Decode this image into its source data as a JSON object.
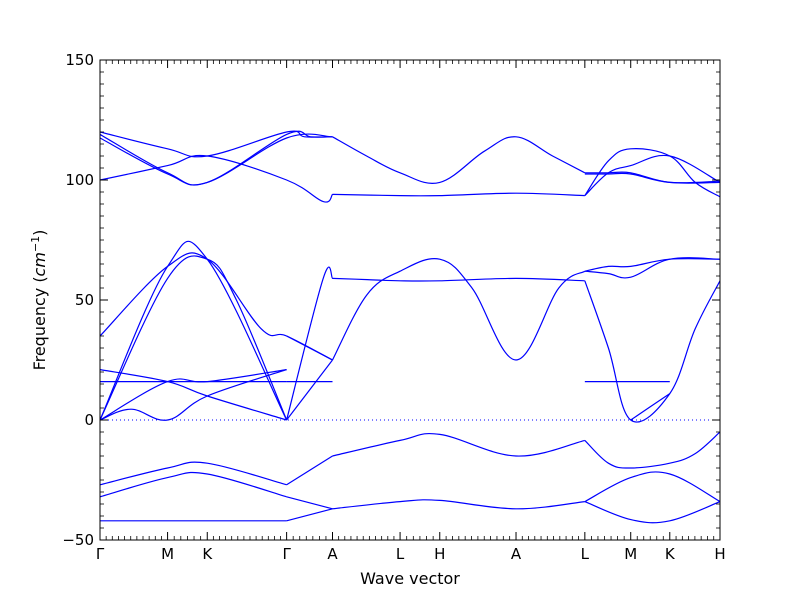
{
  "chart_data": {
    "type": "line",
    "title": "",
    "xlabel": "Wave vector",
    "ylabel_prefix": "Frequency (",
    "ylabel_unit_base": "cm",
    "ylabel_unit_exp": "−1",
    "ylabel_suffix": ")",
    "ylim": [
      -50,
      150
    ],
    "yticks": [
      -50,
      0,
      50,
      100,
      150
    ],
    "ytick_labels": [
      "−50",
      "0",
      "50",
      "100",
      "150"
    ],
    "grid": false,
    "legend": "none",
    "colors": {
      "bands": "#0000ff",
      "zero_line": "#0000ff"
    },
    "high_symmetry_points": [
      {
        "label": "Γ",
        "x": 0.0
      },
      {
        "label": "M",
        "x": 0.109
      },
      {
        "label": "K",
        "x": 0.173
      },
      {
        "label": "Γ",
        "x": 0.301
      },
      {
        "label": "A",
        "x": 0.375
      },
      {
        "label": "L",
        "x": 0.484
      },
      {
        "label": "H",
        "x": 0.548
      },
      {
        "label": "A",
        "x": 0.671
      },
      {
        "label": "L",
        "x": 0.782
      },
      {
        "label": "M",
        "x": 0.856
      },
      {
        "label": "K",
        "x": 0.919
      },
      {
        "label": "H",
        "x": 1.0
      }
    ],
    "xlim": [
      0,
      1
    ],
    "series": [
      {
        "x": [
          0,
          0.109,
          0.173,
          0.301,
          0.33,
          0.375
        ],
        "y": [
          120,
          113,
          110,
          120,
          118,
          118
        ]
      },
      {
        "x": [
          0,
          0.109,
          0.173,
          0.301,
          0.34,
          0.375
        ],
        "y": [
          119,
          103,
          99,
          119,
          118,
          118
        ]
      },
      {
        "x": [
          0,
          0.109,
          0.173,
          0.301,
          0.375
        ],
        "y": [
          117.5,
          102.5,
          99,
          117.5,
          118
        ]
      },
      {
        "x": [
          0,
          0.109,
          0.173,
          0.301,
          0.36,
          0.375
        ],
        "y": [
          100,
          106,
          110,
          100,
          91,
          94
        ]
      },
      {
        "x": [
          0.375,
          0.43,
          0.484,
          0.548,
          0.62,
          0.671,
          0.73,
          0.782
        ],
        "y": [
          118,
          110,
          103,
          99,
          112,
          118,
          110,
          103
        ]
      },
      {
        "x": [
          0.375,
          0.484,
          0.548,
          0.671,
          0.782
        ],
        "y": [
          94,
          93.5,
          93.5,
          94.5,
          93.5
        ]
      },
      {
        "x": [
          0.782,
          0.82,
          0.856,
          0.919,
          1.0
        ],
        "y": [
          103,
          103,
          103,
          99,
          99
        ]
      },
      {
        "x": [
          0.782,
          0.82,
          0.856,
          0.919,
          1.0
        ],
        "y": [
          102.5,
          102.5,
          102.5,
          99,
          99.5
        ]
      },
      {
        "x": [
          0.782,
          0.82,
          0.856,
          0.919,
          0.96,
          1.0
        ],
        "y": [
          93.5,
          108,
          113,
          110,
          99,
          93
        ]
      },
      {
        "x": [
          0.782,
          0.82,
          0.856,
          0.919,
          1.0
        ],
        "y": [
          93.5,
          103,
          106,
          110,
          99
        ]
      },
      {
        "x": [
          0,
          0.109,
          0.173,
          0.26,
          0.301,
          0.375
        ],
        "y": [
          35,
          64,
          67,
          38,
          35,
          25
        ]
      },
      {
        "x": [
          0,
          0.109,
          0.173,
          0.22,
          0.301
        ],
        "y": [
          0,
          59,
          67,
          50,
          0
        ]
      },
      {
        "x": [
          0,
          0.109,
          0.173,
          0.301
        ],
        "y": [
          0,
          64,
          67,
          0
        ]
      },
      {
        "x": [
          0,
          0.109,
          0.173,
          0.301
        ],
        "y": [
          21,
          16,
          10,
          0
        ]
      },
      {
        "x": [
          0,
          0.109,
          0.173,
          0.301
        ],
        "y": [
          16,
          16,
          16,
          16
        ]
      },
      {
        "x": [
          0,
          0.109,
          0.173,
          0.301
        ],
        "y": [
          0,
          16,
          16,
          21
        ]
      },
      {
        "x": [
          0,
          0.05,
          0.109,
          0.173,
          0.301
        ],
        "y": [
          0,
          4.5,
          0,
          10,
          21
        ]
      },
      {
        "x": [
          0.301,
          0.375
        ],
        "y": [
          35,
          25
        ]
      },
      {
        "x": [
          0.301,
          0.375
        ],
        "y": [
          0,
          25
        ]
      },
      {
        "x": [
          0.301,
          0.36,
          0.375
        ],
        "y": [
          0,
          59,
          59
        ]
      },
      {
        "x": [
          0.375,
          0.431,
          0.484,
          0.548,
          0.671,
          0.782
        ],
        "y": [
          59,
          58.5,
          58,
          58,
          59,
          58
        ]
      },
      {
        "x": [
          0.375,
          0.43,
          0.484,
          0.548,
          0.6,
          0.671,
          0.74,
          0.782
        ],
        "y": [
          25,
          52,
          62,
          67,
          55,
          25,
          55,
          62
        ]
      },
      {
        "x": [
          0.782,
          0.82,
          0.856,
          0.919,
          1.0
        ],
        "y": [
          62,
          64,
          64,
          67,
          67
        ]
      },
      {
        "x": [
          0.782,
          0.82,
          0.856,
          0.919,
          1.0
        ],
        "y": [
          62,
          61,
          59.5,
          67,
          67
        ]
      },
      {
        "x": [
          0.782,
          0.82,
          0.856,
          0.919,
          0.96,
          1.0
        ],
        "y": [
          58,
          30,
          0,
          11,
          38,
          58
        ]
      },
      {
        "x": [
          0.782,
          0.856,
          0.919
        ],
        "y": [
          16,
          16,
          16
        ]
      },
      {
        "x": [
          0.856,
          0.919
        ],
        "y": [
          0,
          11
        ]
      },
      {
        "x": [
          0.301,
          0.375
        ],
        "y": [
          16,
          16
        ]
      },
      {
        "x": [
          0.301,
          0.375
        ],
        "y": [
          -27,
          -15
        ]
      },
      {
        "x": [
          0.375,
          0.484,
          0.548,
          0.671,
          0.782
        ],
        "y": [
          -15,
          -8.5,
          -6,
          -15,
          -8.5
        ]
      },
      {
        "x": [
          0.782,
          0.82,
          0.856,
          0.919,
          0.96,
          1.0
        ],
        "y": [
          -8.5,
          -18,
          -20,
          -18,
          -14,
          -5
        ]
      },
      {
        "x": [
          0,
          0.109,
          0.173,
          0.301
        ],
        "y": [
          -27,
          -20,
          -18,
          -27
        ]
      },
      {
        "x": [
          0,
          0.109,
          0.173,
          0.301
        ],
        "y": [
          -32,
          -24,
          -22.5,
          -32
        ]
      },
      {
        "x": [
          0,
          0.109,
          0.173,
          0.301
        ],
        "y": [
          -42,
          -42,
          -42,
          -42
        ]
      },
      {
        "x": [
          0.301,
          0.375
        ],
        "y": [
          -32,
          -37
        ]
      },
      {
        "x": [
          0.301,
          0.375
        ],
        "y": [
          -42,
          -37
        ]
      },
      {
        "x": [
          0.375,
          0.484,
          0.548,
          0.671,
          0.782
        ],
        "y": [
          -37,
          -34,
          -33.5,
          -37,
          -34
        ]
      },
      {
        "x": [
          0.782,
          0.856,
          0.919,
          1.0
        ],
        "y": [
          -34,
          -24,
          -22.5,
          -34
        ]
      },
      {
        "x": [
          0.782,
          0.856,
          0.919,
          1.0
        ],
        "y": [
          -34,
          -41.5,
          -42,
          -34
        ]
      }
    ]
  }
}
